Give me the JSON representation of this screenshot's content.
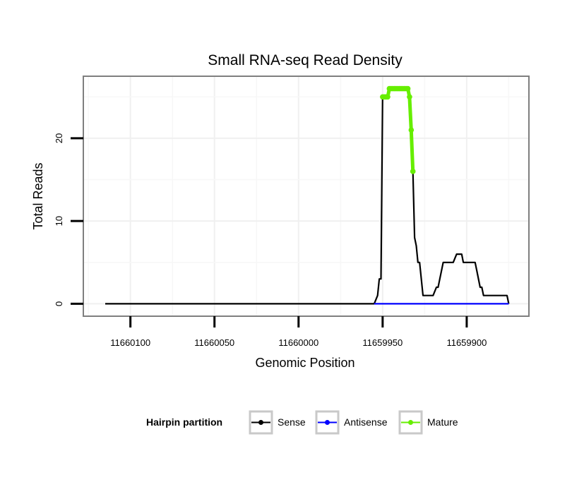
{
  "chart_data": {
    "type": "line",
    "title": "Small RNA-seq Read Density",
    "xlabel": "Genomic Position",
    "ylabel": "Total Reads",
    "xlim": [
      11660128,
      11659863
    ],
    "ylim": [
      -1.5,
      27.5
    ],
    "x_reversed": true,
    "x_ticks": [
      11660100,
      11660050,
      11660000,
      11659950,
      11659900
    ],
    "x_tick_labels": [
      "11660100",
      "11660050",
      "11660000",
      "11659950",
      "11659900"
    ],
    "y_ticks": [
      0,
      10,
      20
    ],
    "y_tick_labels": [
      "0",
      "10",
      "20"
    ],
    "grid": true,
    "legend": {
      "title": "Hairpin partition",
      "position": "bottom",
      "entries": [
        {
          "name": "Sense",
          "color": "#000000"
        },
        {
          "name": "Antisense",
          "color": "#0000ff"
        },
        {
          "name": "Mature",
          "color": "#66ee00"
        }
      ]
    },
    "series": [
      {
        "name": "Sense",
        "color": "#000000",
        "x": [
          11660115,
          11659955,
          11659953,
          11659952,
          11659951,
          11659950,
          11659949,
          11659948,
          11659947,
          11659946,
          11659945,
          11659944,
          11659943,
          11659942,
          11659941,
          11659940,
          11659939,
          11659938,
          11659937,
          11659936,
          11659935,
          11659934,
          11659933,
          11659932,
          11659931,
          11659930,
          11659929,
          11659928,
          11659927,
          11659926,
          11659925,
          11659924,
          11659923,
          11659922,
          11659920,
          11659918,
          11659917,
          11659916,
          11659914,
          11659913,
          11659912,
          11659910,
          11659908,
          11659906,
          11659904,
          11659903,
          11659902,
          11659901,
          11659899,
          11659897,
          11659895,
          11659894,
          11659892,
          11659891,
          11659890,
          11659888,
          11659886,
          11659884,
          11659881,
          11659879,
          11659877,
          11659876,
          11659875
        ],
        "values": [
          0,
          0,
          1,
          3,
          3,
          25,
          25,
          25,
          25,
          26,
          26,
          26,
          26,
          26,
          26,
          26,
          26,
          26,
          26,
          26,
          26,
          25,
          21,
          16,
          8,
          7,
          5,
          5,
          3,
          1,
          1,
          1,
          1,
          1,
          1,
          2,
          2,
          3,
          5,
          5,
          5,
          5,
          5,
          6,
          6,
          6,
          5,
          5,
          5,
          5,
          5,
          4,
          2,
          2,
          1,
          1,
          1,
          1,
          1,
          1,
          1,
          1,
          0
        ]
      },
      {
        "name": "Antisense",
        "color": "#0000ff",
        "x": [
          11659955,
          11659875
        ],
        "values": [
          0,
          0
        ]
      },
      {
        "name": "Mature",
        "color": "#66ee00",
        "x": [
          11659950,
          11659949,
          11659948,
          11659947,
          11659946,
          11659945,
          11659944,
          11659943,
          11659942,
          11659941,
          11659940,
          11659939,
          11659938,
          11659937,
          11659936,
          11659935,
          11659934,
          11659933,
          11659932
        ],
        "values": [
          25,
          25,
          25,
          25,
          26,
          26,
          26,
          26,
          26,
          26,
          26,
          26,
          26,
          26,
          26,
          26,
          25,
          21,
          16
        ]
      }
    ]
  }
}
